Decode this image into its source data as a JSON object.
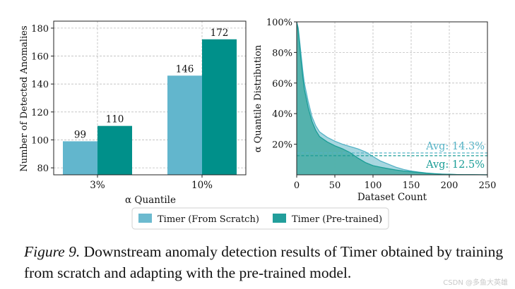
{
  "chart_data": [
    {
      "type": "bar",
      "categories": [
        "3%",
        "10%"
      ],
      "series": [
        {
          "name": "Timer (From Scratch)",
          "values": [
            99,
            146
          ],
          "labels": [
            "99",
            "146"
          ]
        },
        {
          "name": "Timer (Pre-trained)",
          "values": [
            110,
            172
          ],
          "labels": [
            "110",
            "172"
          ]
        }
      ],
      "xlabel": "α Quantile",
      "ylabel": "Number of Detected Anomalies",
      "ylim": [
        75,
        185
      ],
      "yticks": [
        80,
        100,
        120,
        140,
        160,
        180
      ],
      "grid": true
    },
    {
      "type": "area",
      "xlabel": "Dataset Count",
      "ylabel": "α Quantile Distribution",
      "xlim": [
        0,
        250
      ],
      "ylim": [
        0,
        100
      ],
      "xticks": [
        0,
        50,
        100,
        150,
        200,
        250
      ],
      "yticks": [
        "20%",
        "40%",
        "60%",
        "80%",
        "100%"
      ],
      "grid": true,
      "series": [
        {
          "name": "Timer (From Scratch)",
          "x": [
            0,
            2,
            5,
            8,
            10,
            15,
            20,
            25,
            30,
            40,
            50,
            60,
            70,
            80,
            90,
            100,
            110,
            120,
            130,
            140,
            150,
            160,
            170,
            180,
            190,
            200,
            210,
            220,
            230,
            240,
            250
          ],
          "y": [
            100,
            96,
            82,
            68,
            60,
            48,
            38,
            32,
            28,
            24.5,
            22,
            20,
            18.5,
            17,
            15,
            12,
            9,
            7,
            5,
            3.5,
            2.5,
            1.8,
            1.2,
            0.8,
            0.5,
            0.3,
            0.2,
            0.1,
            0.1,
            0.05,
            0
          ]
        },
        {
          "name": "Timer (Pre-trained)",
          "x": [
            0,
            2,
            5,
            8,
            10,
            15,
            20,
            25,
            30,
            40,
            50,
            60,
            70,
            80,
            90,
            100,
            110,
            120,
            130,
            140,
            150,
            160,
            170,
            180,
            190,
            200,
            210,
            220,
            230,
            240,
            250
          ],
          "y": [
            100,
            94,
            78,
            64,
            56,
            44,
            35,
            29,
            25,
            21.5,
            19,
            17,
            14.5,
            11,
            8,
            6,
            5,
            4,
            3.2,
            2.5,
            2.0,
            1.5,
            1.0,
            0.7,
            0.4,
            0.3,
            0.2,
            0.1,
            0.1,
            0.05,
            0
          ]
        }
      ],
      "annotations": [
        {
          "text": "Avg: 14.3%",
          "value": 14.3,
          "series": "Timer (From Scratch)"
        },
        {
          "text": "Avg: 12.5%",
          "value": 12.5,
          "series": "Timer (Pre-trained)"
        }
      ]
    }
  ],
  "legend": {
    "items": [
      {
        "label": "Timer (From Scratch)",
        "color": "#6cbacf"
      },
      {
        "label": "Timer (Pre-trained)",
        "color": "#229e9b"
      }
    ],
    "placement": "bottom-center"
  },
  "colors": {
    "scratch_bar": "#62b6cd",
    "pretrained_bar": "#00908a",
    "scratch_line": "#55b3c6",
    "pretrained_line": "#1a9d96",
    "scratch_fill": "#9fd3dd",
    "pretrained_fill": "#45aca3"
  },
  "caption": {
    "label": "Figure 9.",
    "text": " Downstream anomaly detection results of Timer obtained by training from scratch and adapting with the pre-trained model."
  },
  "watermark": "CSDN @多鱼大英雄"
}
